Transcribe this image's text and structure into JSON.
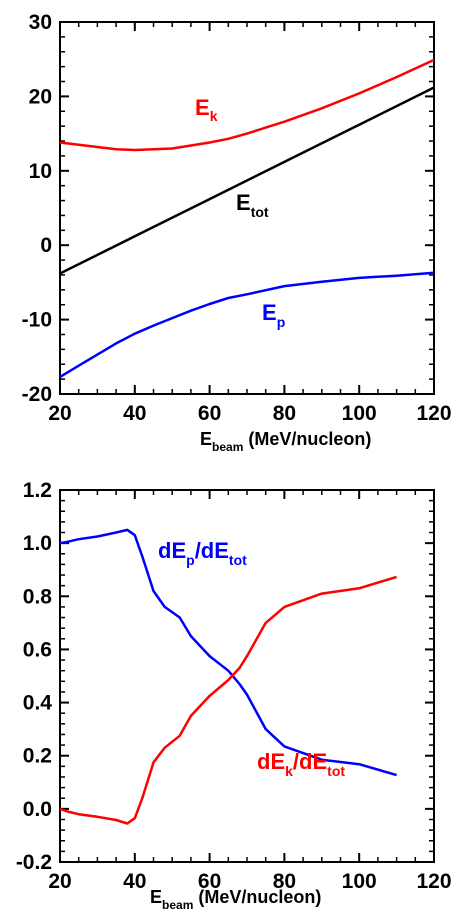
{
  "chart_data": [
    {
      "type": "line",
      "xlabel": {
        "main": "E",
        "sub": "beam",
        "rest": " (MeV/nucleon)"
      },
      "ylabel": "",
      "xlim": [
        20,
        120
      ],
      "ylim": [
        -20,
        30
      ],
      "xticks": [
        20,
        40,
        60,
        80,
        100,
        120
      ],
      "yticks": [
        -20,
        -10,
        0,
        10,
        20,
        30
      ],
      "grid": false,
      "series": [
        {
          "name": "E_k",
          "label_main": "E",
          "label_sub": "k",
          "color": "#ff0000",
          "x": [
            20,
            25,
            30,
            35,
            40,
            45,
            50,
            55,
            60,
            65,
            70,
            75,
            80,
            90,
            100,
            110,
            120
          ],
          "y": [
            13.8,
            13.5,
            13.2,
            12.9,
            12.8,
            12.9,
            13.0,
            13.4,
            13.8,
            14.3,
            15.0,
            15.8,
            16.6,
            18.4,
            20.4,
            22.6,
            24.9
          ]
        },
        {
          "name": "E_tot",
          "label_main": "E",
          "label_sub": "tot",
          "color": "#000000",
          "x": [
            20,
            40,
            60,
            80,
            100,
            120
          ],
          "y": [
            -3.8,
            1.2,
            6.2,
            11.2,
            16.2,
            21.2
          ]
        },
        {
          "name": "E_p",
          "label_main": "E",
          "label_sub": "p",
          "color": "#0000ff",
          "x": [
            20,
            25,
            30,
            35,
            40,
            45,
            50,
            55,
            60,
            65,
            70,
            80,
            90,
            100,
            110,
            120
          ],
          "y": [
            -17.7,
            -16.2,
            -14.7,
            -13.2,
            -11.9,
            -10.8,
            -9.8,
            -8.8,
            -7.9,
            -7.1,
            -6.6,
            -5.5,
            -4.9,
            -4.4,
            -4.1,
            -3.7
          ]
        }
      ]
    },
    {
      "type": "line",
      "xlabel": {
        "main": "E",
        "sub": "beam",
        "rest": " (MeV/nucleon)"
      },
      "ylabel": "",
      "xlim": [
        20,
        120
      ],
      "ylim": [
        -0.2,
        1.2
      ],
      "xticks": [
        20,
        40,
        60,
        80,
        100,
        120
      ],
      "yticks": [
        "-0.2",
        "0.0",
        "0.2",
        "0.4",
        "0.6",
        "0.8",
        "1.0",
        "1.2"
      ],
      "grid": false,
      "series": [
        {
          "name": "dE_p/dE_tot",
          "label_parts": [
            "dE",
            "p",
            "/dE",
            "tot"
          ],
          "color": "#0000ff",
          "x": [
            20,
            22,
            25,
            30,
            35,
            38,
            40,
            42,
            45,
            48,
            52,
            55,
            60,
            65,
            68,
            70,
            75,
            80,
            90,
            100,
            110
          ],
          "y": [
            1.0,
            1.005,
            1.015,
            1.025,
            1.04,
            1.05,
            1.03,
            0.95,
            0.82,
            0.76,
            0.72,
            0.65,
            0.575,
            0.52,
            0.47,
            0.43,
            0.3,
            0.235,
            0.185,
            0.168,
            0.127
          ]
        },
        {
          "name": "dE_k/dE_tot",
          "label_parts": [
            "dE",
            "k",
            "/dE",
            "tot"
          ],
          "color": "#ff0000",
          "x": [
            20,
            22,
            25,
            30,
            35,
            38,
            40,
            42,
            45,
            48,
            52,
            55,
            60,
            65,
            68,
            70,
            75,
            80,
            90,
            100,
            110
          ],
          "y": [
            0.0,
            -0.01,
            -0.02,
            -0.03,
            -0.042,
            -0.055,
            -0.035,
            0.04,
            0.175,
            0.23,
            0.275,
            0.35,
            0.425,
            0.485,
            0.53,
            0.575,
            0.7,
            0.76,
            0.81,
            0.83,
            0.873
          ]
        }
      ]
    }
  ]
}
